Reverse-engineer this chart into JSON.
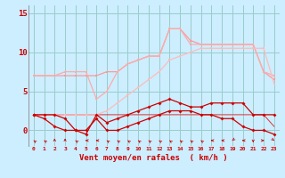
{
  "x": [
    0,
    1,
    2,
    3,
    4,
    5,
    6,
    7,
    8,
    9,
    10,
    11,
    12,
    13,
    14,
    15,
    16,
    17,
    18,
    19,
    20,
    21,
    22,
    23
  ],
  "series1": [
    7.0,
    7.0,
    7.0,
    7.0,
    7.0,
    7.0,
    7.0,
    7.5,
    7.5,
    8.5,
    9.0,
    9.5,
    9.5,
    13.0,
    13.0,
    11.5,
    11.0,
    11.0,
    11.0,
    11.0,
    11.0,
    11.0,
    7.5,
    6.5
  ],
  "series2": [
    7.0,
    7.0,
    7.0,
    7.5,
    7.5,
    7.5,
    4.0,
    5.0,
    7.5,
    8.5,
    9.0,
    9.5,
    9.5,
    13.0,
    13.0,
    11.0,
    11.0,
    11.0,
    11.0,
    11.0,
    11.0,
    11.0,
    7.5,
    7.0
  ],
  "series3": [
    2.0,
    2.0,
    2.0,
    2.0,
    2.0,
    2.0,
    2.0,
    2.5,
    3.5,
    4.5,
    5.5,
    6.5,
    7.5,
    9.0,
    9.5,
    10.0,
    10.5,
    10.5,
    10.5,
    10.5,
    10.5,
    10.5,
    10.5,
    6.0
  ],
  "series4": [
    2.0,
    2.0,
    2.0,
    1.5,
    0.0,
    -0.5,
    2.0,
    1.0,
    1.5,
    2.0,
    2.5,
    3.0,
    3.5,
    4.0,
    3.5,
    3.0,
    3.0,
    3.5,
    3.5,
    3.5,
    3.5,
    2.0,
    2.0,
    2.0
  ],
  "series5": [
    2.0,
    1.5,
    0.5,
    0.0,
    0.0,
    0.0,
    1.5,
    0.0,
    0.0,
    0.5,
    1.0,
    1.5,
    2.0,
    2.5,
    2.5,
    2.5,
    2.0,
    2.0,
    1.5,
    1.5,
    0.5,
    0.0,
    0.0,
    -0.5
  ],
  "series6": [
    2.0,
    2.0,
    2.0,
    2.0,
    2.0,
    2.0,
    2.0,
    2.0,
    2.0,
    2.0,
    2.0,
    2.0,
    2.0,
    2.0,
    2.0,
    2.0,
    2.0,
    2.0,
    2.0,
    2.0,
    2.0,
    2.0,
    2.0,
    0.5
  ],
  "bg_color": "#cceeff",
  "grid_color": "#99cccc",
  "xlabel": "Vent moyen/en rafales  ( km/h )",
  "ylim": [
    -2.0,
    16.0
  ],
  "yticks": [
    0,
    5,
    10,
    15
  ],
  "xticks": [
    0,
    1,
    2,
    3,
    4,
    5,
    6,
    7,
    8,
    9,
    10,
    11,
    12,
    13,
    14,
    15,
    16,
    17,
    18,
    19,
    20,
    21,
    22,
    23
  ],
  "arrow_angles": [
    225,
    225,
    180,
    180,
    225,
    270,
    270,
    225,
    225,
    225,
    225,
    225,
    225,
    225,
    225,
    225,
    225,
    270,
    270,
    315,
    270,
    0,
    90,
    45
  ]
}
